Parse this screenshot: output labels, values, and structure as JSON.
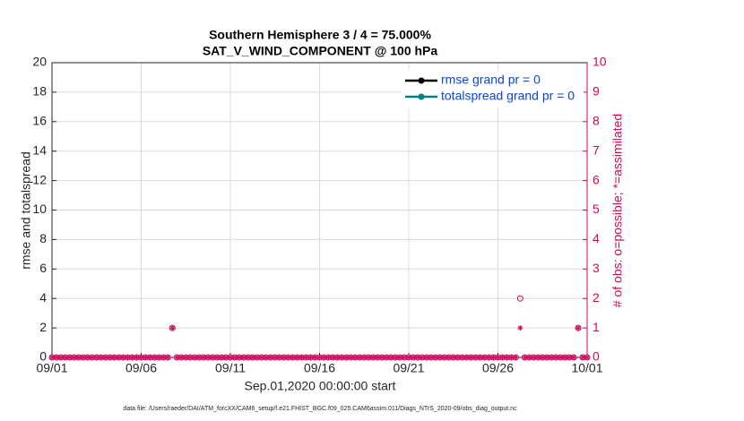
{
  "chart_data": {
    "type": "scatter",
    "title": "Southern Hemisphere 3 / 4 = 75.000%",
    "subtitle": "SAT_V_WIND_COMPONENT @ 100 hPa",
    "xlabel": "Sep.01,2020 00:00:00 start",
    "ylabel": "rmse and totalspread",
    "y2label": "# of obs: o=possible; *=assimilated",
    "footnote": "data file: /Users/raeder/DAI/ATM_forcXX/CAM6_setup/f.e21.FHIST_BGC.f09_025.CAM6assim.011/Diags_NTrS_2020-09/obs_diag_output.nc",
    "xlim": [
      0,
      30
    ],
    "xticks": [
      {
        "value": 0,
        "label": "09/01"
      },
      {
        "value": 5,
        "label": "09/06"
      },
      {
        "value": 10,
        "label": "09/11"
      },
      {
        "value": 15,
        "label": "09/16"
      },
      {
        "value": 20,
        "label": "09/21"
      },
      {
        "value": 25,
        "label": "09/26"
      },
      {
        "value": 30,
        "label": "10/01"
      }
    ],
    "ylim": [
      0,
      20
    ],
    "yticks": [
      0,
      2,
      4,
      6,
      8,
      10,
      12,
      14,
      16,
      18,
      20
    ],
    "y2lim": [
      0,
      10
    ],
    "y2ticks": [
      0,
      1,
      2,
      3,
      4,
      5,
      6,
      7,
      8,
      9,
      10
    ],
    "grid": true,
    "legend": "upper right",
    "legend_series": [
      {
        "name": "rmse grand pr = 0",
        "color": "#000000"
      },
      {
        "name": "totalspread grand pr = 0",
        "color": "#008080"
      }
    ],
    "x": [
      0,
      0.25,
      0.5,
      0.75,
      1,
      1.25,
      1.5,
      1.75,
      2,
      2.25,
      2.5,
      2.75,
      3,
      3.25,
      3.5,
      3.75,
      4,
      4.25,
      4.5,
      4.75,
      5,
      5.25,
      5.5,
      5.75,
      6,
      6.25,
      6.5,
      6.75,
      7,
      7.25,
      7.5,
      7.75,
      8,
      8.25,
      8.5,
      8.75,
      9,
      9.25,
      9.5,
      9.75,
      10,
      10.25,
      10.5,
      10.75,
      11,
      11.25,
      11.5,
      11.75,
      12,
      12.25,
      12.5,
      12.75,
      13,
      13.25,
      13.5,
      13.75,
      14,
      14.25,
      14.5,
      14.75,
      15,
      15.25,
      15.5,
      15.75,
      16,
      16.25,
      16.5,
      16.75,
      17,
      17.25,
      17.5,
      17.75,
      18,
      18.25,
      18.5,
      18.75,
      19,
      19.25,
      19.5,
      19.75,
      20,
      20.25,
      20.5,
      20.75,
      21,
      21.25,
      21.5,
      21.75,
      22,
      22.25,
      22.5,
      22.75,
      23,
      23.25,
      23.5,
      23.75,
      24,
      24.25,
      24.5,
      24.75,
      25,
      25.25,
      25.5,
      25.75,
      26,
      26.25,
      26.5,
      26.75,
      27,
      27.25,
      27.5,
      27.75,
      28,
      28.25,
      28.5,
      28.75,
      29,
      29.25,
      29.5,
      29.75,
      30
    ],
    "series": [
      {
        "name": "possible",
        "marker": "circle",
        "color": "#cc0a5c",
        "axis": "y2",
        "values": [
          0,
          0,
          0,
          0,
          0,
          0,
          0,
          0,
          0,
          0,
          0,
          0,
          0,
          0,
          0,
          0,
          0,
          0,
          0,
          0,
          0,
          0,
          0,
          0,
          0,
          0,
          0,
          1,
          0,
          0,
          0,
          0,
          0,
          0,
          0,
          0,
          0,
          0,
          0,
          0,
          0,
          0,
          0,
          0,
          0,
          0,
          0,
          0,
          0,
          0,
          0,
          0,
          0,
          0,
          0,
          0,
          0,
          0,
          0,
          0,
          0,
          0,
          0,
          0,
          0,
          0,
          0,
          0,
          0,
          0,
          0,
          0,
          0,
          0,
          0,
          0,
          0,
          0,
          0,
          0,
          0,
          0,
          0,
          0,
          0,
          0,
          0,
          0,
          0,
          0,
          0,
          0,
          0,
          0,
          0,
          0,
          0,
          0,
          0,
          0,
          0,
          0,
          0,
          0,
          0,
          2,
          0,
          0,
          0,
          0,
          0,
          0,
          0,
          0,
          0,
          0,
          0,
          0,
          1,
          0,
          0
        ]
      },
      {
        "name": "assimilated",
        "marker": "asterisk",
        "color": "#cc0a5c",
        "axis": "y2",
        "values": [
          0,
          0,
          0,
          0,
          0,
          0,
          0,
          0,
          0,
          0,
          0,
          0,
          0,
          0,
          0,
          0,
          0,
          0,
          0,
          0,
          0,
          0,
          0,
          0,
          0,
          0,
          0,
          1,
          0,
          0,
          0,
          0,
          0,
          0,
          0,
          0,
          0,
          0,
          0,
          0,
          0,
          0,
          0,
          0,
          0,
          0,
          0,
          0,
          0,
          0,
          0,
          0,
          0,
          0,
          0,
          0,
          0,
          0,
          0,
          0,
          0,
          0,
          0,
          0,
          0,
          0,
          0,
          0,
          0,
          0,
          0,
          0,
          0,
          0,
          0,
          0,
          0,
          0,
          0,
          0,
          0,
          0,
          0,
          0,
          0,
          0,
          0,
          0,
          0,
          0,
          0,
          0,
          0,
          0,
          0,
          0,
          0,
          0,
          0,
          0,
          0,
          0,
          0,
          0,
          0,
          1,
          0,
          0,
          0,
          0,
          0,
          0,
          0,
          0,
          0,
          0,
          0,
          0,
          1,
          0,
          0
        ]
      }
    ]
  }
}
